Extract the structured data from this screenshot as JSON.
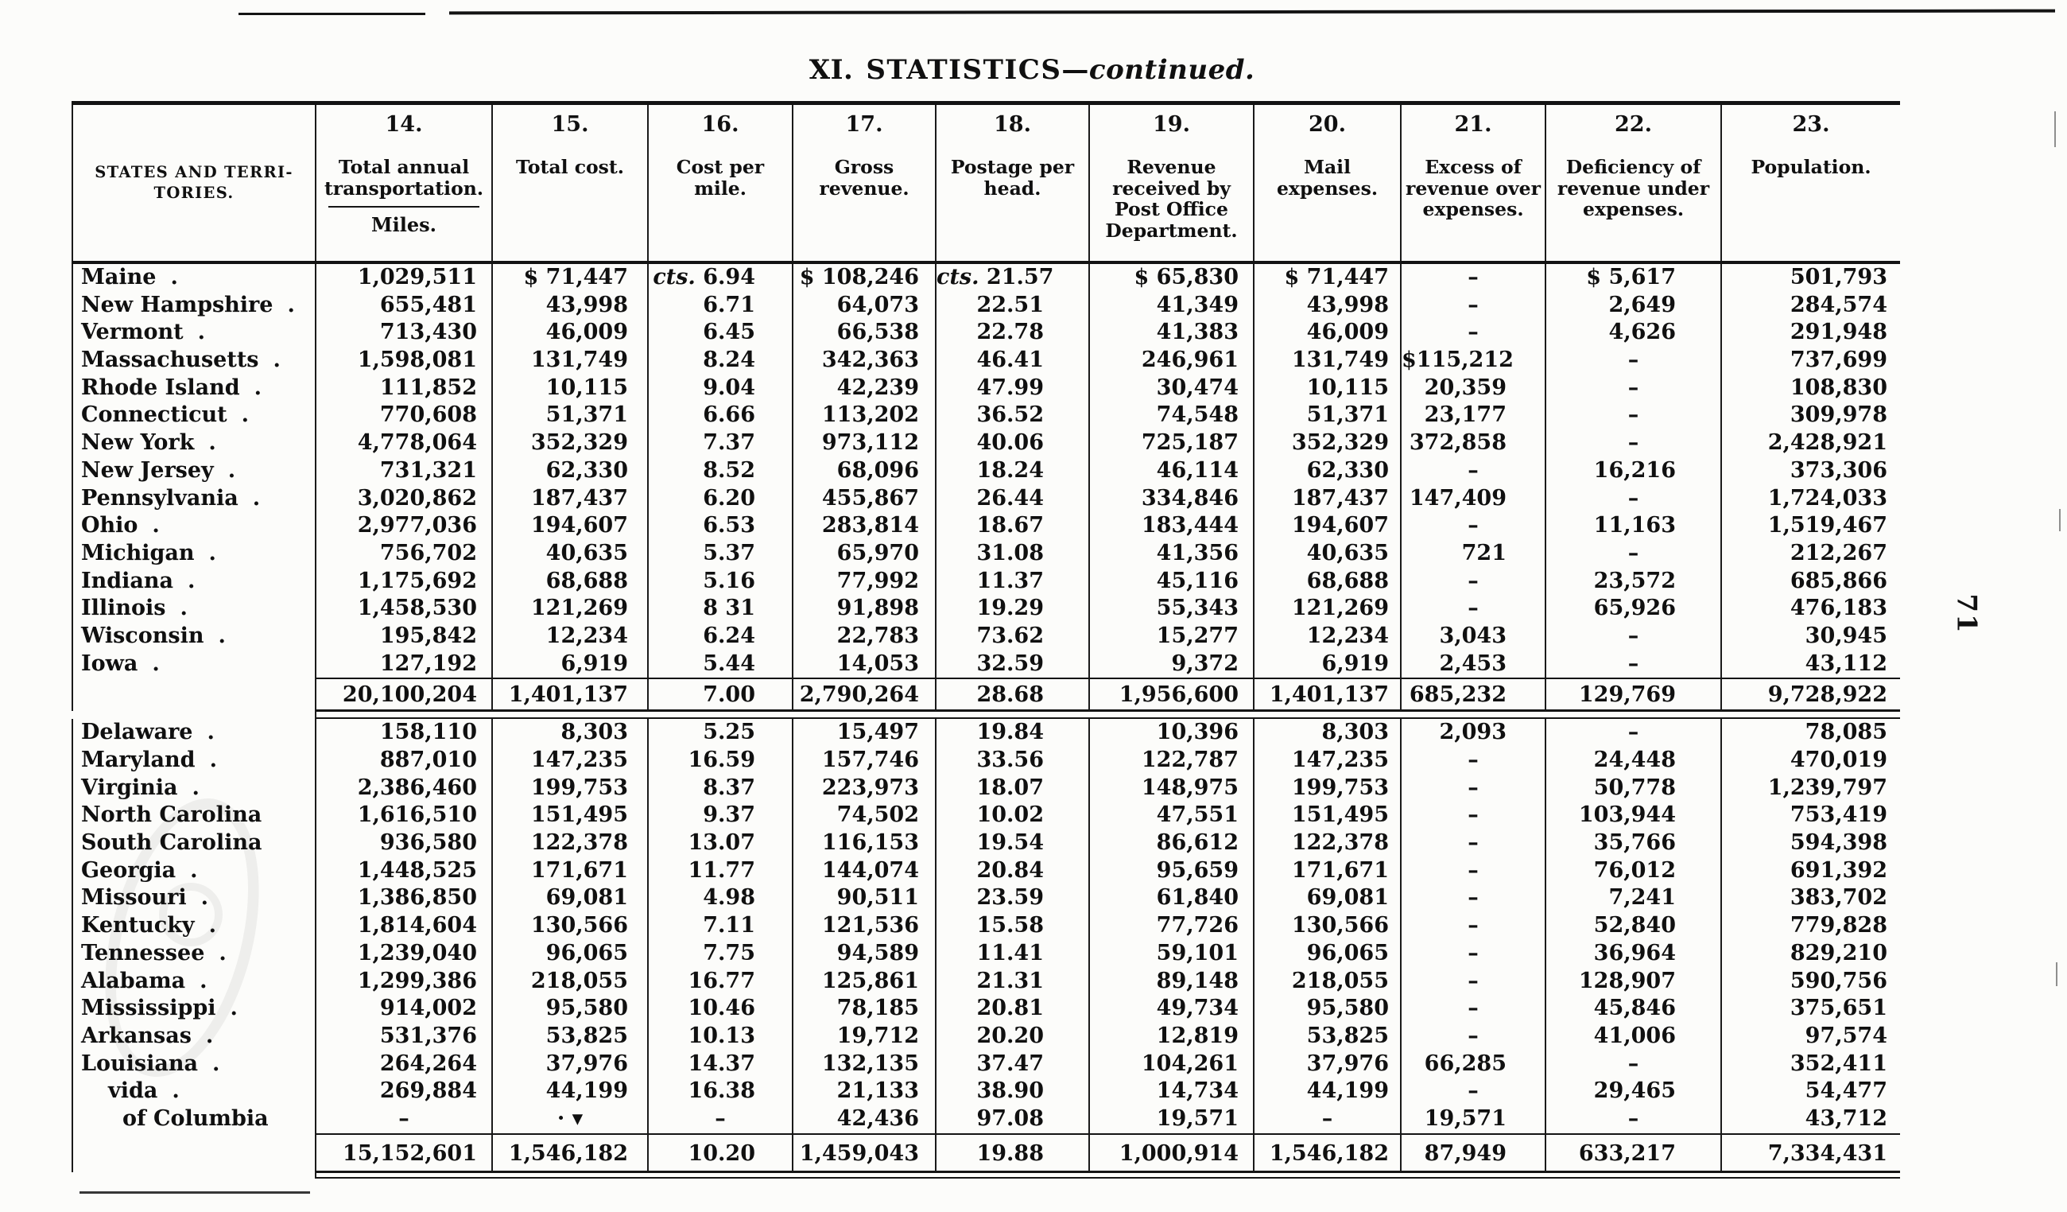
{
  "title": {
    "roman": "XI.",
    "main": "STATISTICS",
    "dash": "—",
    "continued": "continued."
  },
  "page_number": "71",
  "table": {
    "states_header": "STATES AND TERRI-\nTORIES.",
    "columns": [
      {
        "num": "14.",
        "label": "Total annual\ntransportation.",
        "sub": "Miles."
      },
      {
        "num": "15.",
        "label": "Total cost."
      },
      {
        "num": "16.",
        "label": "Cost per\nmile."
      },
      {
        "num": "17.",
        "label": "Gross\nrevenue."
      },
      {
        "num": "18.",
        "label": "Postage per\nhead."
      },
      {
        "num": "19.",
        "label": "Revenue\nreceived by\nPost Office\nDepartment."
      },
      {
        "num": "20.",
        "label": "Mail\nexpenses."
      },
      {
        "num": "21.",
        "label": "Excess of\nrevenue over\nexpenses."
      },
      {
        "num": "22.",
        "label": "Deficiency of\nrevenue under\nexpenses."
      },
      {
        "num": "23.",
        "label": "Population."
      }
    ],
    "sections": [
      {
        "rows": [
          {
            "state": "Maine",
            "dot": ".",
            "values": [
              "1,029,511",
              "$ 71,447",
              "cts. 6.94",
              "$ 108,246",
              "cts. 21.57",
              "$ 65,830",
              "$ 71,447",
              "–",
              "$ 5,617",
              "501,793"
            ]
          },
          {
            "state": "New Hampshire",
            "dot": ".",
            "values": [
              "655,481",
              "43,998",
              "6.71",
              "64,073",
              "22.51",
              "41,349",
              "43,998",
              "–",
              "2,649",
              "284,574"
            ]
          },
          {
            "state": "Vermont",
            "dot": ".",
            "values": [
              "713,430",
              "46,009",
              "6.45",
              "66,538",
              "22.78",
              "41,383",
              "46,009",
              "–",
              "4,626",
              "291,948"
            ]
          },
          {
            "state": "Massachusetts",
            "dot": ".",
            "values": [
              "1,598,081",
              "131,749",
              "8.24",
              "342,363",
              "46.41",
              "246,961",
              "131,749",
              "$115,212",
              "–",
              "737,699"
            ]
          },
          {
            "state": "Rhode Island",
            "dot": ".",
            "values": [
              "111,852",
              "10,115",
              "9.04",
              "42,239",
              "47.99",
              "30,474",
              "10,115",
              "20,359",
              "–",
              "108,830"
            ]
          },
          {
            "state": "Connecticut",
            "dot": ".",
            "values": [
              "770,608",
              "51,371",
              "6.66",
              "113,202",
              "36.52",
              "74,548",
              "51,371",
              "23,177",
              "–",
              "309,978"
            ]
          },
          {
            "state": "New York",
            "dot": ".",
            "values": [
              "4,778,064",
              "352,329",
              "7.37",
              "973,112",
              "40.06",
              "725,187",
              "352,329",
              "372,858",
              "–",
              "2,428,921"
            ]
          },
          {
            "state": "New Jersey",
            "dot": ".",
            "values": [
              "731,321",
              "62,330",
              "8.52",
              "68,096",
              "18.24",
              "46,114",
              "62,330",
              "–",
              "16,216",
              "373,306"
            ]
          },
          {
            "state": "Pennsylvania",
            "dot": ".",
            "values": [
              "3,020,862",
              "187,437",
              "6.20",
              "455,867",
              "26.44",
              "334,846",
              "187,437",
              "147,409",
              "–",
              "1,724,033"
            ]
          },
          {
            "state": "Ohio",
            "dot": ".",
            "values": [
              "2,977,036",
              "194,607",
              "6.53",
              "283,814",
              "18.67",
              "183,444",
              "194,607",
              "–",
              "11,163",
              "1,519,467"
            ]
          },
          {
            "state": "Michigan",
            "dot": ".",
            "values": [
              "756,702",
              "40,635",
              "5.37",
              "65,970",
              "31.08",
              "41,356",
              "40,635",
              "721",
              "–",
              "212,267"
            ]
          },
          {
            "state": "Indiana",
            "dot": ".",
            "values": [
              "1,175,692",
              "68,688",
              "5.16",
              "77,992",
              "11.37",
              "45,116",
              "68,688",
              "–",
              "23,572",
              "685,866"
            ]
          },
          {
            "state": "Illinois",
            "dot": ".",
            "values": [
              "1,458,530",
              "121,269",
              "8 31",
              "91,898",
              "19.29",
              "55,343",
              "121,269",
              "–",
              "65,926",
              "476,183"
            ]
          },
          {
            "state": "Wisconsin",
            "dot": ".",
            "values": [
              "195,842",
              "12,234",
              "6.24",
              "22,783",
              "73.62",
              "15,277",
              "12,234",
              "3,043",
              "–",
              "30,945"
            ]
          },
          {
            "state": "Iowa",
            "dot": ".",
            "values": [
              "127,192",
              "6,919",
              "5.44",
              "14,053",
              "32.59",
              "9,372",
              "6,919",
              "2,453",
              "–",
              "43,112"
            ]
          }
        ],
        "total": [
          "20,100,204",
          "1,401,137",
          "7.00",
          "2,790,264",
          "28.68",
          "1,956,600",
          "1,401,137",
          "685,232",
          "129,769",
          "9,728,922"
        ]
      },
      {
        "rows": [
          {
            "state": "Delaware",
            "dot": ".",
            "values": [
              "158,110",
              "8,303",
              "5.25",
              "15,497",
              "19.84",
              "10,396",
              "8,303",
              "2,093",
              "–",
              "78,085"
            ]
          },
          {
            "state": "Maryland",
            "dot": ".",
            "values": [
              "887,010",
              "147,235",
              "16.59",
              "157,746",
              "33.56",
              "122,787",
              "147,235",
              "–",
              "24,448",
              "470,019"
            ]
          },
          {
            "state": "Virginia",
            "dot": ".",
            "values": [
              "2,386,460",
              "199,753",
              "8.37",
              "223,973",
              "18.07",
              "148,975",
              "199,753",
              "–",
              "50,778",
              "1,239,797"
            ]
          },
          {
            "state": "North Carolina",
            "dot": "",
            "values": [
              "1,616,510",
              "151,495",
              "9.37",
              "74,502",
              "10.02",
              "47,551",
              "151,495",
              "–",
              "103,944",
              "753,419"
            ]
          },
          {
            "state": "South Carolina",
            "dot": "",
            "values": [
              "936,580",
              "122,378",
              "13.07",
              "116,153",
              "19.54",
              "86,612",
              "122,378",
              "–",
              "35,766",
              "594,398"
            ]
          },
          {
            "state": "Georgia",
            "dot": ".",
            "values": [
              "1,448,525",
              "171,671",
              "11.77",
              "144,074",
              "20.84",
              "95,659",
              "171,671",
              "–",
              "76,012",
              "691,392"
            ]
          },
          {
            "state": "Missouri",
            "dot": ".",
            "values": [
              "1,386,850",
              "69,081",
              "4.98",
              "90,511",
              "23.59",
              "61,840",
              "69,081",
              "–",
              "7,241",
              "383,702"
            ]
          },
          {
            "state": "Kentucky",
            "dot": ".",
            "values": [
              "1,814,604",
              "130,566",
              "7.11",
              "121,536",
              "15.58",
              "77,726",
              "130,566",
              "–",
              "52,840",
              "779,828"
            ]
          },
          {
            "state": "Tennessee",
            "dot": ".",
            "values": [
              "1,239,040",
              "96,065",
              "7.75",
              "94,589",
              "11.41",
              "59,101",
              "96,065",
              "–",
              "36,964",
              "829,210"
            ]
          },
          {
            "state": "Alabama",
            "dot": ".",
            "values": [
              "1,299,386",
              "218,055",
              "16.77",
              "125,861",
              "21.31",
              "89,148",
              "218,055",
              "–",
              "128,907",
              "590,756"
            ]
          },
          {
            "state": "Mississippi",
            "dot": ".",
            "values": [
              "914,002",
              "95,580",
              "10.46",
              "78,185",
              "20.81",
              "49,734",
              "95,580",
              "–",
              "45,846",
              "375,651"
            ]
          },
          {
            "state": "Arkansas",
            "dot": ".",
            "values": [
              "531,376",
              "53,825",
              "10.13",
              "19,712",
              "20.20",
              "12,819",
              "53,825",
              "–",
              "41,006",
              "97,574"
            ]
          },
          {
            "state": "Louisiana",
            "dot": ".",
            "values": [
              "264,264",
              "37,976",
              "14.37",
              "132,135",
              "37.47",
              "104,261",
              "37,976",
              "66,285",
              "–",
              "352,411"
            ]
          },
          {
            "state": "vida",
            "dot": ".",
            "indent": 34,
            "values": [
              "269,884",
              "44,199",
              "16.38",
              "21,133",
              "38.90",
              "14,734",
              "44,199",
              "–",
              "29,465",
              "54,477"
            ]
          },
          {
            "state": "of Columbia",
            "dot": "",
            "indent": 52,
            "values": [
              "–",
              "· ▾",
              "–",
              "42,436",
              "97.08",
              "19,571",
              "–",
              "19,571",
              "–",
              "43,712"
            ]
          }
        ],
        "total": [
          "15,152,601",
          "1,546,182",
          "10.20",
          "1,459,043",
          "19.88",
          "1,000,914",
          "1,546,182",
          "87,949",
          "633,217",
          "7,334,431"
        ]
      }
    ]
  }
}
